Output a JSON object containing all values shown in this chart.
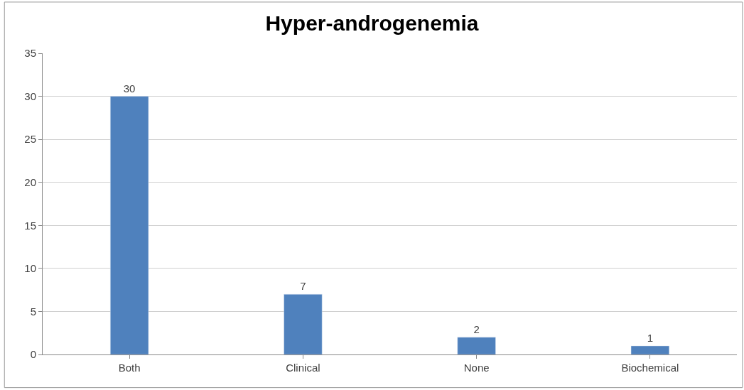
{
  "chart_data": {
    "type": "bar",
    "title": "Hyper-androgenemia",
    "categories": [
      "Both",
      "Clinical",
      "None",
      "Biochemical"
    ],
    "values": [
      30,
      7,
      2,
      1
    ],
    "color": "#4f81bd",
    "ylim": [
      0,
      35
    ],
    "yticks": [
      0,
      5,
      10,
      15,
      20,
      25,
      30,
      35
    ],
    "grid": "y",
    "data_labels": true,
    "legend": false
  }
}
